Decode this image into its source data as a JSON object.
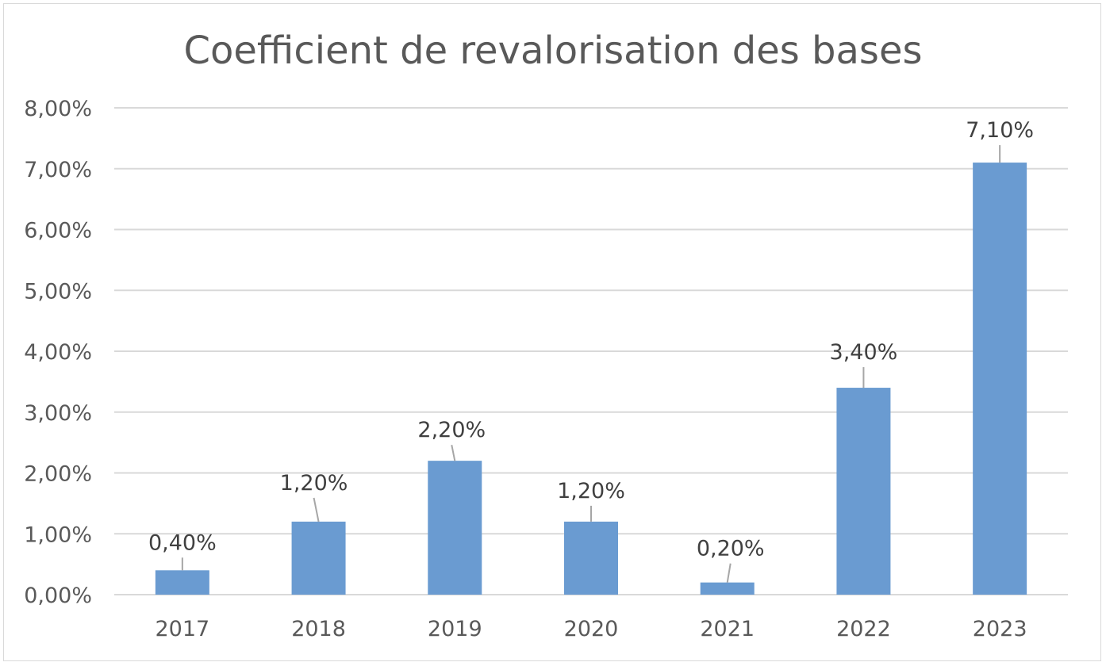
{
  "chart_data": {
    "type": "bar",
    "title": "Coefficient de revalorisation des bases",
    "xlabel": "",
    "ylabel": "",
    "categories": [
      "2017",
      "2018",
      "2019",
      "2020",
      "2021",
      "2022",
      "2023"
    ],
    "values": [
      0.4,
      1.2,
      2.2,
      1.2,
      0.2,
      3.4,
      7.1
    ],
    "data_labels": [
      "0,40%",
      "1,20%",
      "2,20%",
      "1,20%",
      "0,20%",
      "3,40%",
      "7,10%"
    ],
    "ylim": [
      0,
      8
    ],
    "yticks": [
      0,
      1,
      2,
      3,
      4,
      5,
      6,
      7,
      8
    ],
    "ytick_labels": [
      "0,00%",
      "1,00%",
      "2,00%",
      "3,00%",
      "4,00%",
      "5,00%",
      "6,00%",
      "7,00%",
      "8,00%"
    ],
    "grid": true,
    "legend": "none",
    "bar_color": "#6a9bd1",
    "grid_color": "#d9d9d9",
    "leader_line_color": "#a6a6a6"
  }
}
